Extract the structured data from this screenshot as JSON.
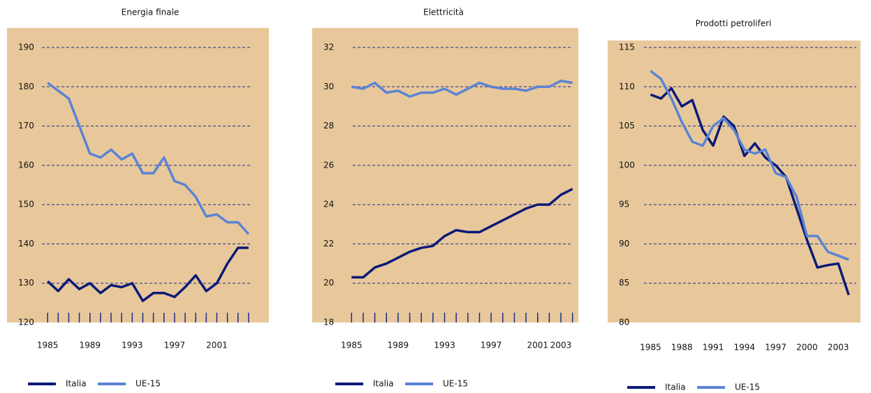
{
  "chart_data": [
    {
      "type": "line",
      "title": "Energia finale",
      "x": [
        1985,
        1986,
        1987,
        1988,
        1989,
        1990,
        1991,
        1992,
        1993,
        1994,
        1995,
        1996,
        1997,
        1998,
        1999,
        2000,
        2001,
        2002,
        2003,
        2004
      ],
      "xticks": [
        1985,
        1989,
        1993,
        1997,
        2001
      ],
      "xlim": [
        1983.8,
        2004.8
      ],
      "ylim": [
        120,
        190
      ],
      "yticks": [
        120,
        130,
        140,
        150,
        160,
        170,
        180,
        190
      ],
      "grid": true,
      "series": [
        {
          "name": "Italia",
          "color": "#0b1a78",
          "values": [
            130.5,
            128,
            131,
            128.5,
            130,
            127.5,
            129.5,
            129,
            130,
            125.5,
            127.5,
            127.5,
            126.5,
            129,
            132,
            128,
            130,
            135,
            139,
            139
          ]
        },
        {
          "name": "UE-15",
          "color": "#5a83d4",
          "values": [
            181,
            179,
            177,
            170,
            163,
            162,
            164,
            161.5,
            163,
            158,
            158,
            162,
            156,
            155,
            152,
            147,
            147.5,
            145.5,
            145.5,
            142.5
          ]
        }
      ]
    },
    {
      "type": "line",
      "title": "Elettricità",
      "x": [
        1985,
        1986,
        1987,
        1988,
        1989,
        1990,
        1991,
        1992,
        1993,
        1994,
        1995,
        1996,
        1997,
        1998,
        1999,
        2000,
        2001,
        2002,
        2003,
        2004
      ],
      "xticks": [
        1985,
        1989,
        1993,
        1997,
        2001,
        2003
      ],
      "xlim": [
        1984.5,
        2004.5
      ],
      "ylim": [
        18,
        32
      ],
      "yticks": [
        18,
        20,
        22,
        24,
        26,
        28,
        30,
        32
      ],
      "grid": true,
      "series": [
        {
          "name": "Italia",
          "color": "#0b1a78",
          "values": [
            20.3,
            20.3,
            20.8,
            21,
            21.3,
            21.6,
            21.8,
            21.9,
            22.4,
            22.7,
            22.6,
            22.6,
            22.9,
            23.2,
            23.5,
            23.8,
            24,
            24,
            24.5,
            24.8
          ]
        },
        {
          "name": "UE-15",
          "color": "#5a83d4",
          "values": [
            30,
            29.9,
            30.2,
            29.7,
            29.8,
            29.5,
            29.7,
            29.7,
            29.9,
            29.6,
            29.9,
            30.2,
            30,
            29.9,
            29.9,
            29.8,
            30,
            30,
            30.3,
            30.2
          ]
        }
      ]
    },
    {
      "type": "line",
      "title": "Prodotti petroliferi",
      "x": [
        1985,
        1986,
        1987,
        1988,
        1989,
        1990,
        1991,
        1992,
        1993,
        1994,
        1995,
        1996,
        1997,
        1998,
        1999,
        2000,
        2001,
        2002,
        2003,
        2004
      ],
      "xticks": [
        1985,
        1988,
        1991,
        1994,
        1997,
        2000,
        2003
      ],
      "xlim": [
        1983.7,
        2005.4
      ],
      "ylim": [
        80,
        115
      ],
      "yticks": [
        80,
        85,
        90,
        95,
        100,
        105,
        110,
        115
      ],
      "grid": true,
      "series": [
        {
          "name": "Italia",
          "color": "#0b1a78",
          "values": [
            109,
            108.5,
            109.8,
            107.5,
            108.3,
            104.5,
            102.5,
            106.2,
            105,
            101.2,
            102.8,
            101,
            100,
            98.5,
            94.5,
            90.5,
            87,
            87.3,
            87.5,
            83.5
          ]
        },
        {
          "name": "UE-15",
          "color": "#5a83d4",
          "values": [
            112,
            111,
            108.5,
            105.5,
            103,
            102.5,
            105,
            106,
            104.5,
            102,
            101.5,
            102,
            99,
            98.5,
            96,
            91,
            91,
            89,
            88.5,
            88
          ]
        }
      ]
    }
  ]
}
